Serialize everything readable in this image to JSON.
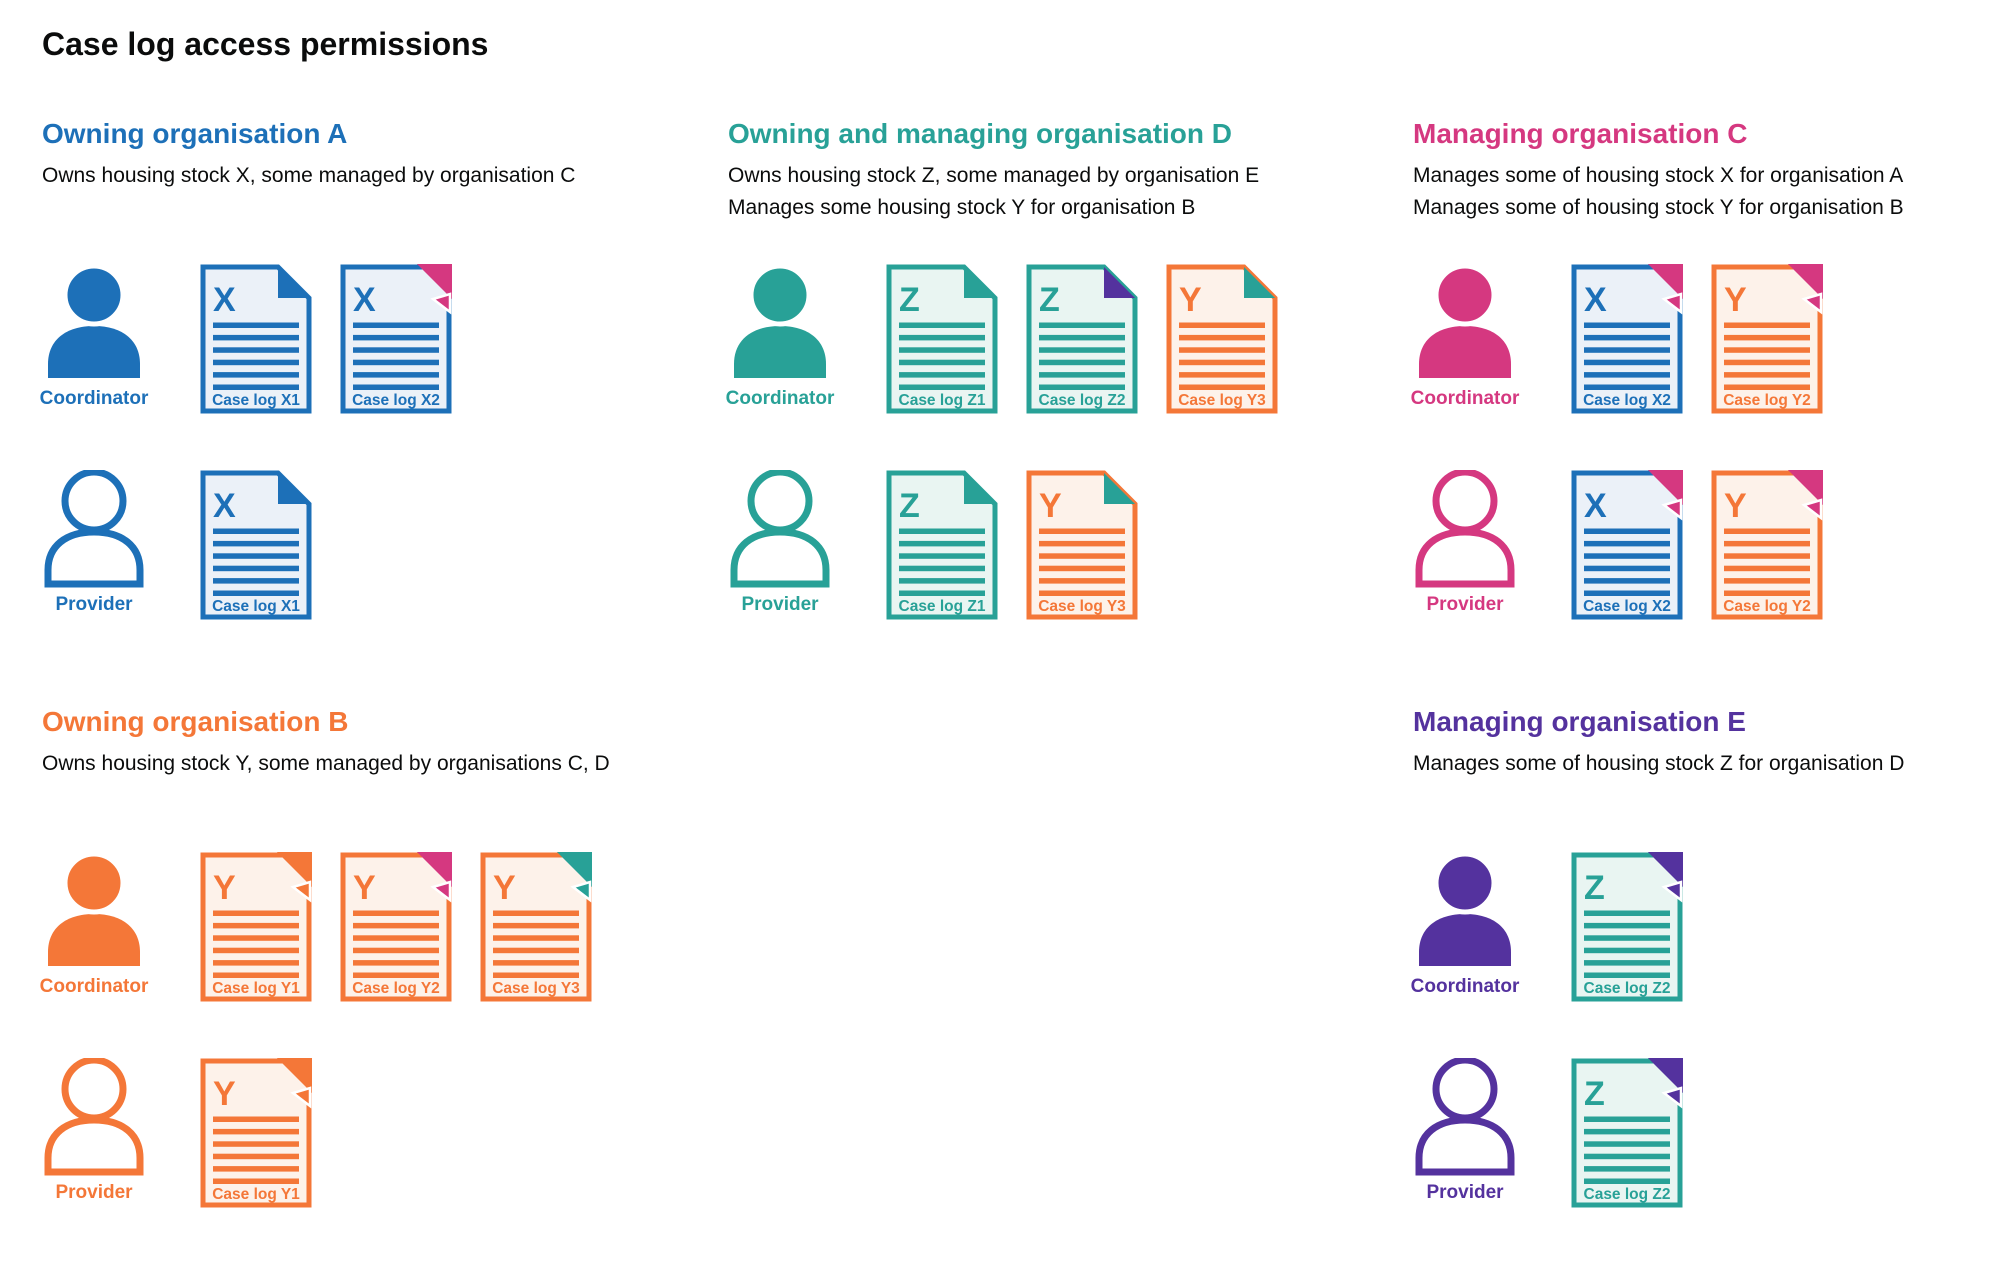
{
  "page": {
    "title": "Case log access permissions",
    "background": "#ffffff",
    "text_color": "#0b0c0c"
  },
  "colors": {
    "blue": "#1d70b8",
    "teal": "#28a197",
    "pink": "#d53880",
    "orange": "#f47738",
    "purple": "#54329e",
    "blue_tint": "#ebf1f8",
    "teal_tint": "#e9f5f2",
    "orange_tint": "#fdf2ea",
    "text": "#0b0c0c"
  },
  "legend": {
    "doc_body_color_means": "owning organisation",
    "fold_color_means": "managing organisation"
  },
  "sections": [
    {
      "id": "org-a",
      "title": "Owning organisation A",
      "color": "blue",
      "description_lines": [
        "Owns housing stock X, some managed by organisation C"
      ],
      "groups": [
        {
          "role_label": "Coordinator",
          "person": "filled",
          "docs": [
            {
              "letter": "X",
              "label": "Case log X1",
              "owner": "blue",
              "flap": "blue",
              "fold": "notch"
            },
            {
              "letter": "X",
              "label": "Case log X2",
              "owner": "blue",
              "flap": "pink",
              "fold": "corner"
            }
          ]
        },
        {
          "role_label": "Provider",
          "person": "outline",
          "docs": [
            {
              "letter": "X",
              "label": "Case log X1",
              "owner": "blue",
              "flap": "blue",
              "fold": "notch"
            }
          ]
        }
      ]
    },
    {
      "id": "org-d",
      "title": "Owning and managing organisation D",
      "color": "teal",
      "description_lines": [
        "Owns housing stock Z, some managed by organisation E",
        "Manages some housing stock Y for organisation B"
      ],
      "groups": [
        {
          "role_label": "Coordinator",
          "person": "filled",
          "docs": [
            {
              "letter": "Z",
              "label": "Case log Z1",
              "owner": "teal",
              "flap": "teal",
              "fold": "notch"
            },
            {
              "letter": "Z",
              "label": "Case log Z2",
              "owner": "teal",
              "flap": "purple",
              "fold": "notch"
            },
            {
              "letter": "Y",
              "label": "Case log Y3",
              "owner": "orange",
              "flap": "teal",
              "fold": "notch"
            }
          ]
        },
        {
          "role_label": "Provider",
          "person": "outline",
          "docs": [
            {
              "letter": "Z",
              "label": "Case log Z1",
              "owner": "teal",
              "flap": "teal",
              "fold": "notch"
            },
            {
              "letter": "Y",
              "label": "Case log Y3",
              "owner": "orange",
              "flap": "teal",
              "fold": "notch"
            }
          ]
        }
      ]
    },
    {
      "id": "org-c",
      "title": "Managing organisation C",
      "color": "pink",
      "description_lines": [
        "Manages some of housing stock X for organisation A",
        "Manages some of housing stock Y for organisation B"
      ],
      "groups": [
        {
          "role_label": "Coordinator",
          "person": "filled",
          "docs": [
            {
              "letter": "X",
              "label": "Case log X2",
              "owner": "blue",
              "flap": "pink",
              "fold": "corner"
            },
            {
              "letter": "Y",
              "label": "Case log Y2",
              "owner": "orange",
              "flap": "pink",
              "fold": "corner"
            }
          ]
        },
        {
          "role_label": "Provider",
          "person": "outline",
          "docs": [
            {
              "letter": "X",
              "label": "Case log X2",
              "owner": "blue",
              "flap": "pink",
              "fold": "corner"
            },
            {
              "letter": "Y",
              "label": "Case log Y2",
              "owner": "orange",
              "flap": "pink",
              "fold": "corner"
            }
          ]
        }
      ]
    },
    {
      "id": "org-b",
      "title": "Owning organisation B",
      "color": "orange",
      "description_lines": [
        "Owns housing stock Y, some managed by organisations C, D"
      ],
      "groups": [
        {
          "role_label": "Coordinator",
          "person": "filled",
          "docs": [
            {
              "letter": "Y",
              "label": "Case log Y1",
              "owner": "orange",
              "flap": "orange",
              "fold": "corner"
            },
            {
              "letter": "Y",
              "label": "Case log Y2",
              "owner": "orange",
              "flap": "pink",
              "fold": "corner"
            },
            {
              "letter": "Y",
              "label": "Case log Y3",
              "owner": "orange",
              "flap": "teal",
              "fold": "corner"
            }
          ]
        },
        {
          "role_label": "Provider",
          "person": "outline",
          "docs": [
            {
              "letter": "Y",
              "label": "Case log Y1",
              "owner": "orange",
              "flap": "orange",
              "fold": "corner"
            }
          ]
        }
      ]
    },
    {
      "id": "org-e",
      "title": "Managing organisation E",
      "color": "purple",
      "description_lines": [
        "Manages some of housing stock Z for organisation D"
      ],
      "groups": [
        {
          "role_label": "Coordinator",
          "person": "filled",
          "docs": [
            {
              "letter": "Z",
              "label": "Case log Z2",
              "owner": "teal",
              "flap": "purple",
              "fold": "corner"
            }
          ]
        },
        {
          "role_label": "Provider",
          "person": "outline",
          "docs": [
            {
              "letter": "Z",
              "label": "Case log Z2",
              "owner": "teal",
              "flap": "purple",
              "fold": "corner"
            }
          ]
        }
      ]
    }
  ]
}
